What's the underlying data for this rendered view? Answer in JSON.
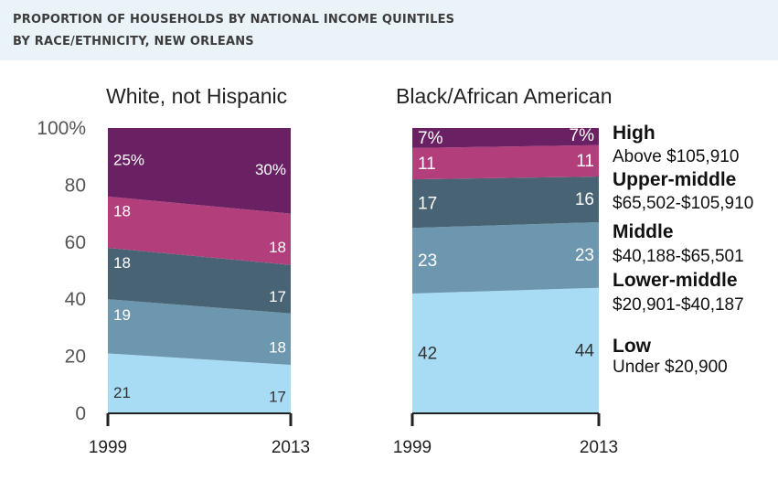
{
  "header": {
    "title_line1": "PROPORTION OF HOUSEHOLDS BY NATIONAL INCOME QUINTILES",
    "title_line2": "BY RACE/ETHNICITY, NEW ORLEANS"
  },
  "colors": {
    "header_bg": "#eaf3f8",
    "low": "#a8dcf5",
    "lower_middle": "#6d97ae",
    "middle": "#486373",
    "upper_middle": "#b33e7c",
    "high": "#6a2163"
  },
  "chart_data": {
    "type": "area",
    "title": "PROPORTION OF HOUSEHOLDS BY NATIONAL INCOME QUINTILES BY RACE/ETHNICITY, NEW ORLEANS",
    "x": [
      "1999",
      "2013"
    ],
    "ylim": [
      0,
      100
    ],
    "yticks": [
      "100%",
      "80",
      "60",
      "40",
      "20",
      "0"
    ],
    "stacked": true,
    "panels": [
      {
        "name": "White, not Hispanic",
        "series": [
          {
            "name": "Low",
            "values": [
              21,
              17
            ],
            "labels": [
              "21",
              "17"
            ]
          },
          {
            "name": "Lower-middle",
            "values": [
              19,
              18
            ],
            "labels": [
              "19",
              "18"
            ]
          },
          {
            "name": "Middle",
            "values": [
              18,
              17
            ],
            "labels": [
              "18",
              "17"
            ]
          },
          {
            "name": "Upper-middle",
            "values": [
              18,
              18
            ],
            "labels": [
              "18",
              "18"
            ]
          },
          {
            "name": "High",
            "values": [
              25,
              30
            ],
            "labels": [
              "25%",
              "30%"
            ]
          }
        ]
      },
      {
        "name": "Black/African American",
        "series": [
          {
            "name": "Low",
            "values": [
              42,
              44
            ],
            "labels": [
              "42",
              "44"
            ]
          },
          {
            "name": "Lower-middle",
            "values": [
              23,
              23
            ],
            "labels": [
              "23",
              "23"
            ]
          },
          {
            "name": "Middle",
            "values": [
              17,
              16
            ],
            "labels": [
              "17",
              "16"
            ]
          },
          {
            "name": "Upper-middle",
            "values": [
              11,
              11
            ],
            "labels": [
              "11",
              "11"
            ]
          },
          {
            "name": "High",
            "values": [
              7,
              7
            ],
            "labels": [
              "7%",
              "7%"
            ]
          }
        ]
      }
    ],
    "legend": [
      {
        "name": "High",
        "range": "Above $105,910"
      },
      {
        "name": "Upper-middle",
        "range": "$65,502-$105,910"
      },
      {
        "name": "Middle",
        "range": "$40,188-$65,501"
      },
      {
        "name": "Lower-middle",
        "range": "$20,901-$40,187"
      },
      {
        "name": "Low",
        "range": "Under $20,900"
      }
    ]
  }
}
